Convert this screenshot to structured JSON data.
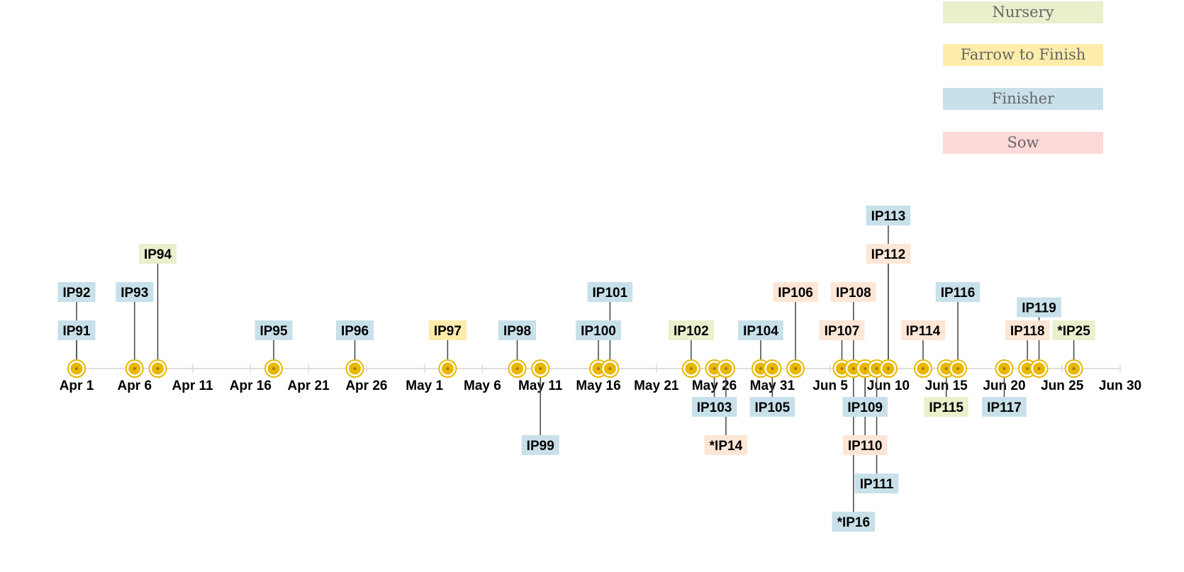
{
  "legend": [
    {
      "label": "Nursery",
      "color": "#e8f0cc"
    },
    {
      "label": "Farrow to Finish",
      "color": "#fdecaa"
    },
    {
      "label": "Finisher",
      "color": "#c8e0ea"
    },
    {
      "label": "Sow",
      "color": "#fdd9d8"
    }
  ],
  "colors": {
    "Nursery": "#e8f0cc",
    "Farrow to Finish": "#fdecaa",
    "Finisher": "#c8e0ea",
    "Sow": "#fde6d6",
    "marker": "#e8b800",
    "axis": "#dddddd"
  },
  "chart_data": {
    "type": "timeline",
    "axis": {
      "start": "2023-04-01",
      "end": "2023-06-30",
      "tick_labels": [
        "Apr 1",
        "Apr 6",
        "Apr 11",
        "Apr 16",
        "Apr 21",
        "Apr 26",
        "May 1",
        "May 6",
        "May 11",
        "May 16",
        "May 21",
        "May 26",
        "May 31",
        "Jun 5",
        "Jun 10",
        "Jun 15",
        "Jun 20",
        "Jun 25",
        "Jun 30"
      ]
    },
    "events": [
      {
        "label": "IP91",
        "date": "2023-04-01",
        "category": "Finisher",
        "level": 1
      },
      {
        "label": "IP92",
        "date": "2023-04-01",
        "category": "Finisher",
        "level": 2
      },
      {
        "label": "IP93",
        "date": "2023-04-06",
        "category": "Finisher",
        "level": 2
      },
      {
        "label": "IP94",
        "date": "2023-04-08",
        "category": "Nursery",
        "level": 3
      },
      {
        "label": "IP95",
        "date": "2023-04-18",
        "category": "Finisher",
        "level": 1
      },
      {
        "label": "IP96",
        "date": "2023-04-25",
        "category": "Finisher",
        "level": 1
      },
      {
        "label": "IP97",
        "date": "2023-05-03",
        "category": "Farrow to Finish",
        "level": 1
      },
      {
        "label": "IP98",
        "date": "2023-05-09",
        "category": "Finisher",
        "level": 1
      },
      {
        "label": "IP99",
        "date": "2023-05-11",
        "category": "Finisher",
        "level": -2
      },
      {
        "label": "IP100",
        "date": "2023-05-16",
        "category": "Finisher",
        "level": 1
      },
      {
        "label": "IP101",
        "date": "2023-05-17",
        "category": "Finisher",
        "level": 2
      },
      {
        "label": "IP102",
        "date": "2023-05-24",
        "category": "Nursery",
        "level": 1
      },
      {
        "label": "IP103",
        "date": "2023-05-26",
        "category": "Finisher",
        "level": -1
      },
      {
        "label": "*IP14",
        "date": "2023-05-27",
        "category": "Sow",
        "level": -2
      },
      {
        "label": "IP104",
        "date": "2023-05-30",
        "category": "Finisher",
        "level": 1
      },
      {
        "label": "IP105",
        "date": "2023-05-31",
        "category": "Finisher",
        "level": -1
      },
      {
        "label": "IP106",
        "date": "2023-06-02",
        "category": "Sow",
        "level": 2
      },
      {
        "label": "IP107",
        "date": "2023-06-06",
        "category": "Sow",
        "level": 1
      },
      {
        "label": "IP108",
        "date": "2023-06-07",
        "category": "Sow",
        "level": 2
      },
      {
        "label": "*IP16",
        "date": "2023-06-07",
        "category": "Finisher",
        "level": -4
      },
      {
        "label": "IP109",
        "date": "2023-06-08",
        "category": "Finisher",
        "level": -1
      },
      {
        "label": "IP110",
        "date": "2023-06-08",
        "category": "Sow",
        "level": -2
      },
      {
        "label": "IP111",
        "date": "2023-06-09",
        "category": "Finisher",
        "level": -3
      },
      {
        "label": "IP112",
        "date": "2023-06-10",
        "category": "Sow",
        "level": 3
      },
      {
        "label": "IP113",
        "date": "2023-06-10",
        "category": "Finisher",
        "level": 4
      },
      {
        "label": "IP114",
        "date": "2023-06-13",
        "category": "Sow",
        "level": 1
      },
      {
        "label": "IP115",
        "date": "2023-06-15",
        "category": "Nursery",
        "level": -1
      },
      {
        "label": "IP116",
        "date": "2023-06-16",
        "category": "Finisher",
        "level": 2
      },
      {
        "label": "IP117",
        "date": "2023-06-20",
        "category": "Finisher",
        "level": -1
      },
      {
        "label": "IP118",
        "date": "2023-06-22",
        "category": "Sow",
        "level": 1
      },
      {
        "label": "IP119",
        "date": "2023-06-23",
        "category": "Finisher",
        "level": 1.6
      },
      {
        "label": "*IP25",
        "date": "2023-06-26",
        "category": "Nursery",
        "level": 1
      }
    ]
  }
}
